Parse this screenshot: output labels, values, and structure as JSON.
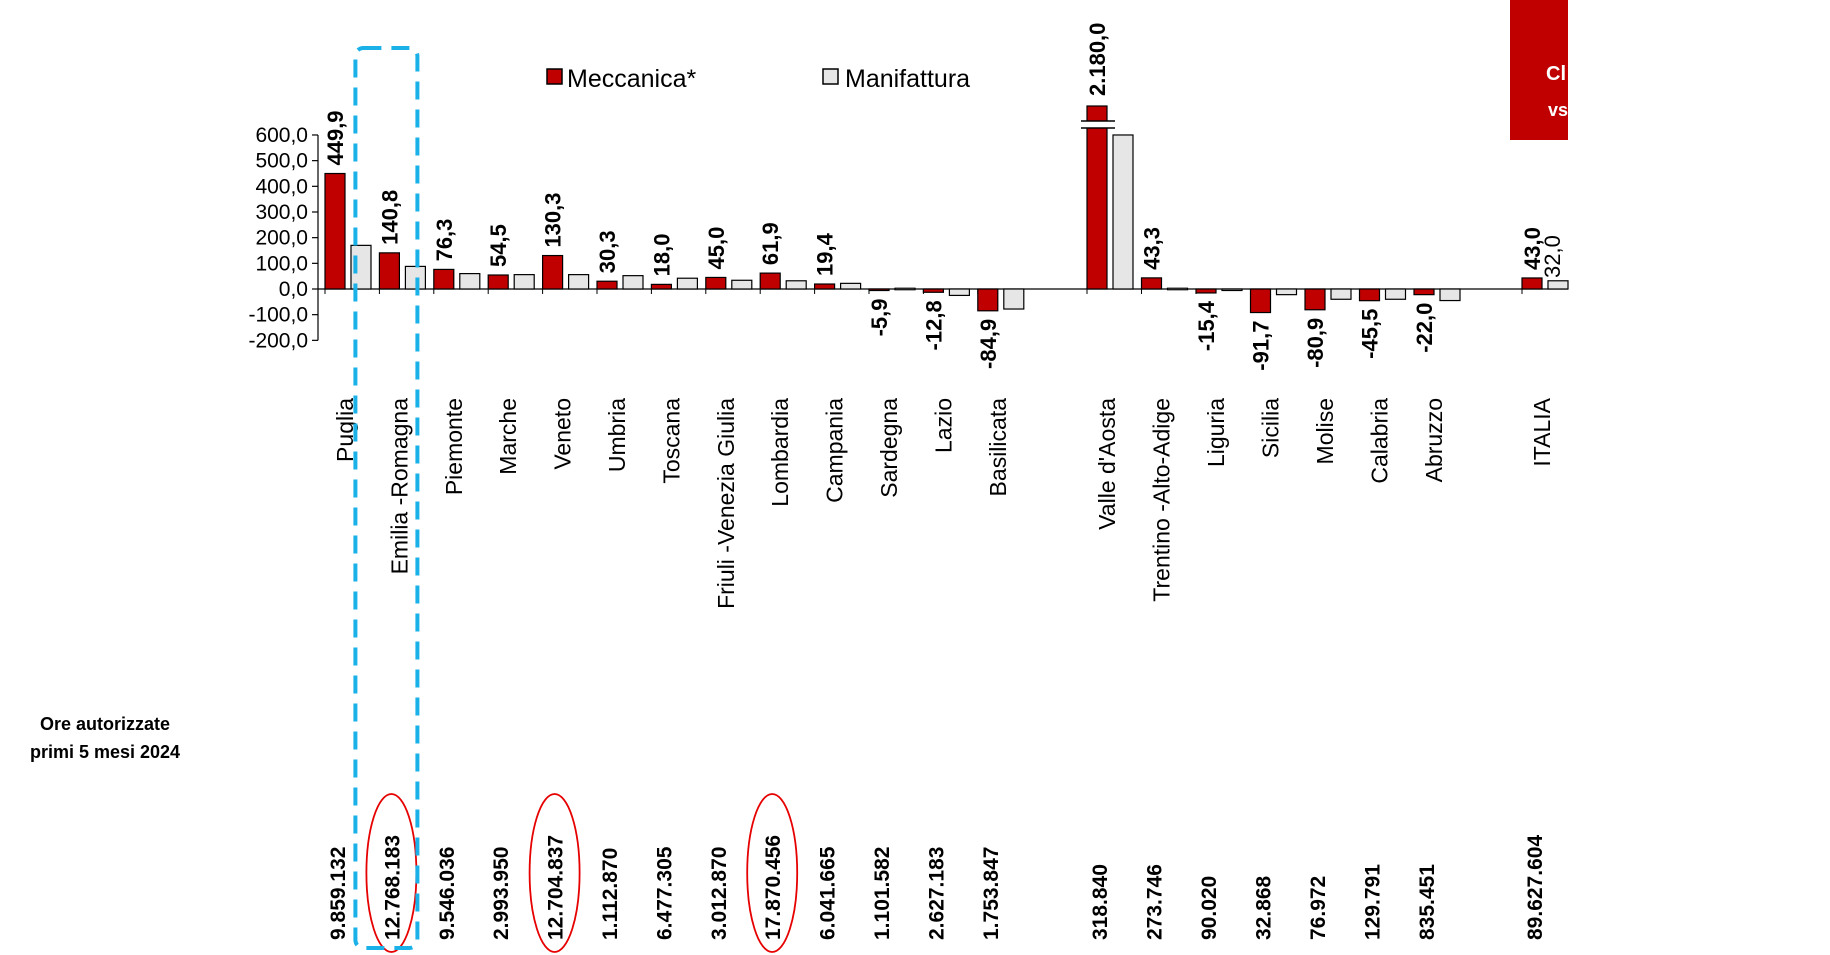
{
  "side_note": {
    "line1": "Ore autorizzate",
    "line2": "primi 5 mesi 2024"
  },
  "corner_box": {
    "line1": "Cl",
    "line2": "vs",
    "color": "#c00000"
  },
  "highlight_color": "#1ab0e8",
  "circle_color": "#e60000",
  "chart_data": {
    "type": "bar",
    "yticks": [
      "600,0",
      "500,0",
      "400,0",
      "300,0",
      "200,0",
      "100,0",
      "0,0",
      "-100,0",
      "-200,0"
    ],
    "ylim": [
      -200,
      600
    ],
    "legend_position": "top",
    "series": [
      {
        "name": "Meccanica*",
        "color": "#c00000"
      },
      {
        "name": "Manifattura",
        "color": "#e6e6e6"
      }
    ],
    "categories": [
      {
        "region": "Puglia",
        "meccanica": 449.9,
        "manifattura": 170,
        "label": "449,9",
        "hours": "9.859.132"
      },
      {
        "region": "Emilia -Romagna",
        "meccanica": 140.8,
        "manifattura": 88,
        "label": "140,8",
        "hours": "12.768.183"
      },
      {
        "region": "Piemonte",
        "meccanica": 76.3,
        "manifattura": 60,
        "label": "76,3",
        "hours": "9.546.036"
      },
      {
        "region": "Marche",
        "meccanica": 54.5,
        "manifattura": 56,
        "label": "54,5",
        "hours": "2.993.950"
      },
      {
        "region": "Veneto",
        "meccanica": 130.3,
        "manifattura": 56,
        "label": "130,3",
        "hours": "12.704.837"
      },
      {
        "region": "Umbria",
        "meccanica": 30.3,
        "manifattura": 52,
        "label": "30,3",
        "hours": "1.112.870"
      },
      {
        "region": "Toscana",
        "meccanica": 18.0,
        "manifattura": 42,
        "label": "18,0",
        "hours": "6.477.305"
      },
      {
        "region": "Friuli -Venezia Giulia",
        "meccanica": 45.0,
        "manifattura": 34,
        "label": "45,0",
        "hours": "3.012.870"
      },
      {
        "region": "Lombardia",
        "meccanica": 61.9,
        "manifattura": 32,
        "label": "61,9",
        "hours": "17.870.456"
      },
      {
        "region": "Campania",
        "meccanica": 19.4,
        "manifattura": 22,
        "label": "19,4",
        "hours": "6.041.665"
      },
      {
        "region": "Sardegna",
        "meccanica": -5.9,
        "manifattura": 3,
        "label": "-5,9",
        "hours": "1.101.582"
      },
      {
        "region": "Lazio",
        "meccanica": -12.8,
        "manifattura": -25,
        "label": "-12,8",
        "hours": "2.627.183"
      },
      {
        "region": "Basilicata",
        "meccanica": -84.9,
        "manifattura": -78,
        "label": "-84,9",
        "hours": "1.753.847"
      },
      {
        "region": "Valle d'Aosta",
        "meccanica": 2180.0,
        "manifattura": 600,
        "label": "2.180,0",
        "hours": "318.840",
        "broken": true
      },
      {
        "region": "Trentino -Alto-Adige",
        "meccanica": 43.3,
        "manifattura": 3,
        "label": "43,3",
        "hours": "273.746"
      },
      {
        "region": "Liguria",
        "meccanica": -15.4,
        "manifattura": -5,
        "label": "-15,4",
        "hours": "90.020"
      },
      {
        "region": "Sicilia",
        "meccanica": -91.7,
        "manifattura": -22,
        "label": "-91,7",
        "hours": "32.868"
      },
      {
        "region": "Molise",
        "meccanica": -80.9,
        "manifattura": -40,
        "label": "-80,9",
        "hours": "76.972"
      },
      {
        "region": "Calabria",
        "meccanica": -45.5,
        "manifattura": -40,
        "label": "-45,5",
        "hours": "129.791"
      },
      {
        "region": "Abruzzo",
        "meccanica": -22.0,
        "manifattura": -45,
        "label": "-22,0",
        "hours": "835.451"
      },
      {
        "region": "ITALIA",
        "meccanica": 43.0,
        "manifattura": 32.0,
        "label": "43,0",
        "label2": "32,0",
        "hours": "89.627.604"
      }
    ],
    "highlighted_region": "Emilia -Romagna",
    "circled_hours": [
      "12.768.183",
      "12.704.837",
      "17.870.456"
    ]
  }
}
